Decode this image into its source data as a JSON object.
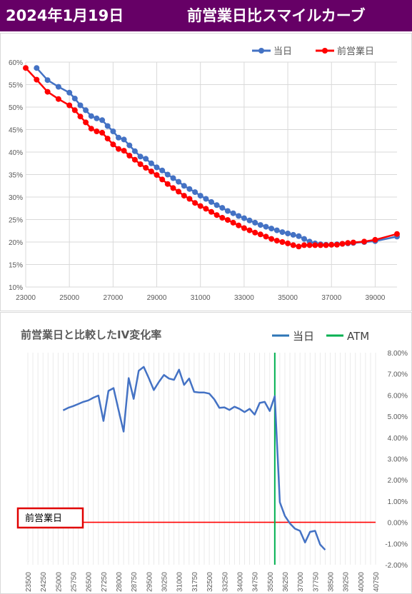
{
  "header": {
    "date": "2024年1月19日",
    "title": "前営業日比スマイルカーブ",
    "bg_color": "#660066"
  },
  "chart_data": [
    {
      "type": "line",
      "title": "",
      "xlabel": "",
      "ylabel": "",
      "xlim": [
        23000,
        40000
      ],
      "ylim": [
        0.1,
        0.6
      ],
      "x_ticks": [
        "23000",
        "25000",
        "27000",
        "29000",
        "31000",
        "33000",
        "35000",
        "37000",
        "39000"
      ],
      "y_ticks": [
        "10%",
        "15%",
        "20%",
        "25%",
        "30%",
        "35%",
        "40%",
        "45%",
        "50%",
        "55%",
        "60%"
      ],
      "legend": "top-right",
      "grid": true,
      "series": [
        {
          "name": "当日",
          "color": "#4472C4",
          "points": [
            [
              23500,
              0.587
            ],
            [
              24000,
              0.56
            ],
            [
              24500,
              0.545
            ],
            [
              25000,
              0.532
            ],
            [
              25250,
              0.519
            ],
            [
              25500,
              0.504
            ],
            [
              25750,
              0.493
            ],
            [
              26000,
              0.48
            ],
            [
              26250,
              0.475
            ],
            [
              26500,
              0.471
            ],
            [
              26750,
              0.458
            ],
            [
              27000,
              0.446
            ],
            [
              27250,
              0.432
            ],
            [
              27500,
              0.428
            ],
            [
              27750,
              0.415
            ],
            [
              28000,
              0.402
            ],
            [
              28250,
              0.39
            ],
            [
              28500,
              0.385
            ],
            [
              28750,
              0.375
            ],
            [
              29000,
              0.366
            ],
            [
              29250,
              0.359
            ],
            [
              29500,
              0.35
            ],
            [
              29750,
              0.342
            ],
            [
              30000,
              0.334
            ],
            [
              30250,
              0.325
            ],
            [
              30500,
              0.318
            ],
            [
              30750,
              0.311
            ],
            [
              31000,
              0.303
            ],
            [
              31250,
              0.296
            ],
            [
              31500,
              0.289
            ],
            [
              31750,
              0.282
            ],
            [
              32000,
              0.276
            ],
            [
              32250,
              0.269
            ],
            [
              32500,
              0.264
            ],
            [
              32750,
              0.258
            ],
            [
              33000,
              0.253
            ],
            [
              33250,
              0.248
            ],
            [
              33500,
              0.243
            ],
            [
              33750,
              0.238
            ],
            [
              34000,
              0.234
            ],
            [
              34250,
              0.23
            ],
            [
              34500,
              0.226
            ],
            [
              34750,
              0.222
            ],
            [
              35000,
              0.219
            ],
            [
              35250,
              0.216
            ],
            [
              35500,
              0.213
            ],
            [
              35750,
              0.207
            ],
            [
              36000,
              0.201
            ],
            [
              36250,
              0.197
            ],
            [
              36500,
              0.195
            ],
            [
              36750,
              0.194
            ],
            [
              37000,
              0.194
            ],
            [
              37250,
              0.195
            ],
            [
              37500,
              0.196
            ],
            [
              37750,
              0.197
            ],
            [
              38000,
              0.198
            ],
            [
              38500,
              0.2
            ],
            [
              39000,
              0.202
            ],
            [
              40000,
              0.212
            ]
          ]
        },
        {
          "name": "前営業日",
          "color": "#FF0000",
          "points": [
            [
              23000,
              0.587
            ],
            [
              23500,
              0.561
            ],
            [
              24000,
              0.534
            ],
            [
              24500,
              0.518
            ],
            [
              25000,
              0.504
            ],
            [
              25250,
              0.493
            ],
            [
              25500,
              0.479
            ],
            [
              25750,
              0.466
            ],
            [
              26000,
              0.452
            ],
            [
              26250,
              0.446
            ],
            [
              26500,
              0.443
            ],
            [
              26750,
              0.43
            ],
            [
              27000,
              0.417
            ],
            [
              27250,
              0.407
            ],
            [
              27500,
              0.403
            ],
            [
              27750,
              0.392
            ],
            [
              28000,
              0.383
            ],
            [
              28250,
              0.373
            ],
            [
              28500,
              0.365
            ],
            [
              28750,
              0.357
            ],
            [
              29000,
              0.349
            ],
            [
              29250,
              0.339
            ],
            [
              29500,
              0.329
            ],
            [
              29750,
              0.32
            ],
            [
              30000,
              0.312
            ],
            [
              30250,
              0.303
            ],
            [
              30500,
              0.296
            ],
            [
              30750,
              0.287
            ],
            [
              31000,
              0.28
            ],
            [
              31250,
              0.274
            ],
            [
              31500,
              0.267
            ],
            [
              31750,
              0.26
            ],
            [
              32000,
              0.254
            ],
            [
              32250,
              0.249
            ],
            [
              32500,
              0.243
            ],
            [
              32750,
              0.237
            ],
            [
              33000,
              0.231
            ],
            [
              33250,
              0.226
            ],
            [
              33500,
              0.221
            ],
            [
              33750,
              0.217
            ],
            [
              34000,
              0.212
            ],
            [
              34250,
              0.207
            ],
            [
              34500,
              0.203
            ],
            [
              34750,
              0.2
            ],
            [
              35000,
              0.197
            ],
            [
              35250,
              0.193
            ],
            [
              35500,
              0.19
            ],
            [
              35750,
              0.193
            ],
            [
              36000,
              0.193
            ],
            [
              36250,
              0.193
            ],
            [
              36500,
              0.193
            ],
            [
              36750,
              0.193
            ],
            [
              37000,
              0.194
            ],
            [
              37250,
              0.194
            ],
            [
              37500,
              0.196
            ],
            [
              37750,
              0.198
            ],
            [
              38000,
              0.199
            ],
            [
              38500,
              0.201
            ],
            [
              39000,
              0.205
            ],
            [
              40000,
              0.218
            ]
          ]
        }
      ]
    },
    {
      "type": "line",
      "title": "前営業日と比較したIV変化率",
      "xlabel": "",
      "ylabel": "",
      "xlim": [
        23500,
        40750
      ],
      "ylim": [
        -0.02,
        0.08
      ],
      "x_ticks": [
        "23500",
        "24250",
        "25000",
        "25750",
        "26500",
        "27250",
        "28000",
        "28750",
        "29500",
        "30250",
        "31000",
        "31750",
        "32500",
        "33250",
        "34000",
        "34750",
        "35500",
        "36250",
        "37000",
        "37750",
        "38500",
        "39250",
        "40000",
        "40750"
      ],
      "y_ticks": [
        "-2.00%",
        "-1.00%",
        "0.00%",
        "1.00%",
        "2.00%",
        "3.00%",
        "4.00%",
        "5.00%",
        "6.00%",
        "7.00%",
        "8.00%"
      ],
      "legend": "top-right",
      "grid": true,
      "atm": 35750,
      "zero_line_label": "前営業日",
      "series": [
        {
          "name": "当日",
          "color": "#4472C4",
          "points": [
            [
              25250,
              0.0528
            ],
            [
              25500,
              0.054
            ],
            [
              25750,
              0.0548
            ],
            [
              26000,
              0.0558
            ],
            [
              26250,
              0.0568
            ],
            [
              26500,
              0.0575
            ],
            [
              26750,
              0.0588
            ],
            [
              27000,
              0.0598
            ],
            [
              27250,
              0.0478
            ],
            [
              27500,
              0.062
            ],
            [
              27750,
              0.0633
            ],
            [
              28000,
              0.053
            ],
            [
              28250,
              0.0428
            ],
            [
              28500,
              0.068
            ],
            [
              28750,
              0.0582
            ],
            [
              29000,
              0.0715
            ],
            [
              29250,
              0.0733
            ],
            [
              29500,
              0.068
            ],
            [
              29750,
              0.0624
            ],
            [
              30000,
              0.0662
            ],
            [
              30250,
              0.0695
            ],
            [
              30500,
              0.0678
            ],
            [
              30750,
              0.0672
            ],
            [
              31000,
              0.072
            ],
            [
              31250,
              0.0648
            ],
            [
              31500,
              0.0678
            ],
            [
              31750,
              0.0615
            ],
            [
              32000,
              0.0612
            ],
            [
              32250,
              0.0612
            ],
            [
              32500,
              0.0607
            ],
            [
              32750,
              0.058
            ],
            [
              33000,
              0.054
            ],
            [
              33250,
              0.0542
            ],
            [
              33500,
              0.053
            ],
            [
              33750,
              0.0545
            ],
            [
              34000,
              0.0535
            ],
            [
              34250,
              0.052
            ],
            [
              34500,
              0.0535
            ],
            [
              34750,
              0.0508
            ],
            [
              35000,
              0.0563
            ],
            [
              35250,
              0.0568
            ],
            [
              35500,
              0.0525
            ],
            [
              35750,
              0.0595
            ],
            [
              36000,
              0.0095
            ],
            [
              36250,
              0.003
            ],
            [
              36500,
              -0.0005
            ],
            [
              36750,
              -0.003
            ],
            [
              37000,
              -0.004
            ],
            [
              37250,
              -0.0095
            ],
            [
              37500,
              -0.0045
            ],
            [
              37750,
              -0.004
            ],
            [
              38000,
              -0.0105
            ],
            [
              38250,
              -0.013
            ]
          ]
        },
        {
          "name": "ATM",
          "color": "#00B050"
        }
      ]
    }
  ]
}
